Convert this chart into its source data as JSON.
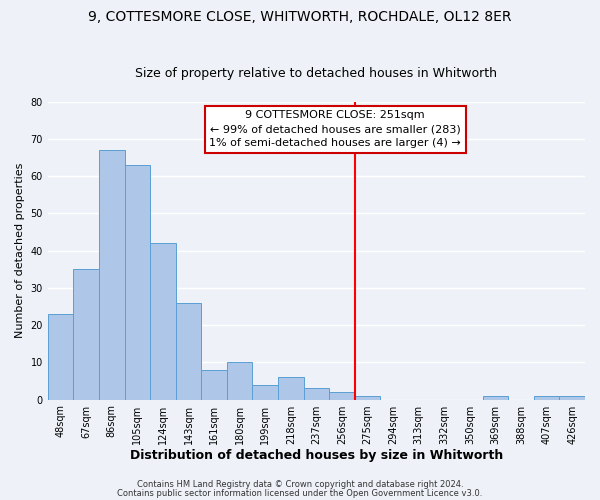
{
  "title": "9, COTTESMORE CLOSE, WHITWORTH, ROCHDALE, OL12 8ER",
  "subtitle": "Size of property relative to detached houses in Whitworth",
  "xlabel": "Distribution of detached houses by size in Whitworth",
  "ylabel": "Number of detached properties",
  "bar_labels": [
    "48sqm",
    "67sqm",
    "86sqm",
    "105sqm",
    "124sqm",
    "143sqm",
    "161sqm",
    "180sqm",
    "199sqm",
    "218sqm",
    "237sqm",
    "256sqm",
    "275sqm",
    "294sqm",
    "313sqm",
    "332sqm",
    "350sqm",
    "369sqm",
    "388sqm",
    "407sqm",
    "426sqm"
  ],
  "bar_values": [
    23,
    35,
    67,
    63,
    42,
    26,
    8,
    10,
    4,
    6,
    3,
    2,
    1,
    0,
    0,
    0,
    0,
    1,
    0,
    1,
    1
  ],
  "bar_color": "#aec6e8",
  "bar_edge_color": "#5a9fd4",
  "vline_x": 11.5,
  "vline_color": "red",
  "ylim": [
    0,
    80
  ],
  "yticks": [
    0,
    10,
    20,
    30,
    40,
    50,
    60,
    70,
    80
  ],
  "annotation_title": "9 COTTESMORE CLOSE: 251sqm",
  "annotation_line1": "← 99% of detached houses are smaller (283)",
  "annotation_line2": "1% of semi-detached houses are larger (4) →",
  "footer_line1": "Contains HM Land Registry data © Crown copyright and database right 2024.",
  "footer_line2": "Contains public sector information licensed under the Open Government Licence v3.0.",
  "background_color": "#eef2f8",
  "grid_color": "#ffffff",
  "title_fontsize": 10,
  "subtitle_fontsize": 9,
  "xlabel_fontsize": 9,
  "ylabel_fontsize": 8,
  "tick_fontsize": 7,
  "annot_fontsize": 8,
  "footer_fontsize": 6
}
